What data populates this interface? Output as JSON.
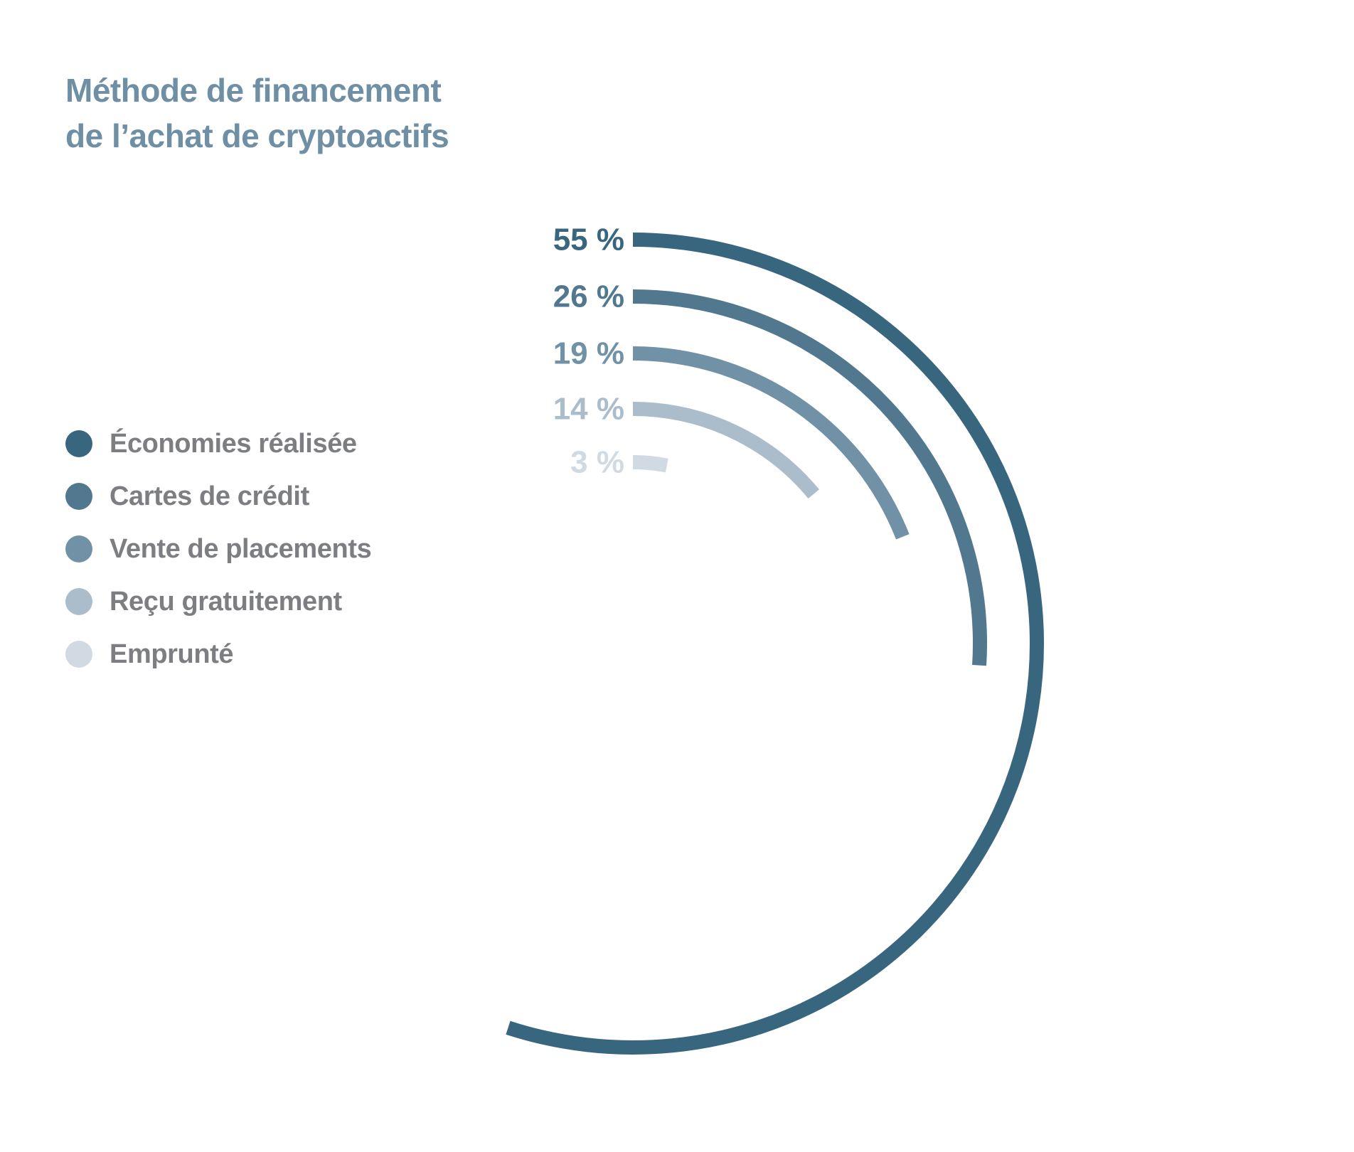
{
  "title": {
    "line1": "Méthode de financement",
    "line2": "de l’achat de cryptoactifs"
  },
  "legend": {
    "items": [
      {
        "label": "Économies réalisée",
        "color": "#39667f"
      },
      {
        "label": "Cartes de crédit",
        "color": "#52788f"
      },
      {
        "label": "Vente de placements",
        "color": "#7192a6"
      },
      {
        "label": "Reçu gratuitement",
        "color": "#abbdcb"
      },
      {
        "label": "Emprunté",
        "color": "#d1dae2"
      }
    ]
  },
  "chart_data": {
    "type": "radial-bar",
    "title": "Méthode de financement de l’achat de cryptoactifs",
    "max_value": 100,
    "series": [
      {
        "name": "Économies réalisée",
        "value": 55,
        "label": "55 %",
        "color": "#39667f"
      },
      {
        "name": "Cartes de crédit",
        "value": 26,
        "label": "26 %",
        "color": "#52788f"
      },
      {
        "name": "Vente de placements",
        "value": 19,
        "label": "19 %",
        "color": "#7192a6"
      },
      {
        "name": "Reçu gratuitement",
        "value": 14,
        "label": "14 %",
        "color": "#abbdcb"
      },
      {
        "name": "Emprunté",
        "value": 3,
        "label": "3 %",
        "color": "#d1dae2"
      }
    ]
  }
}
